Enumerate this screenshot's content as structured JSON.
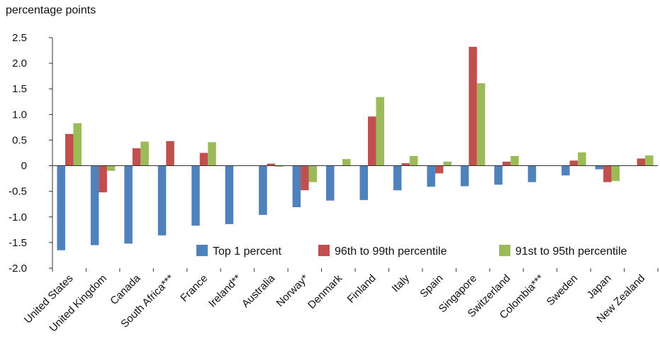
{
  "chart_data": {
    "type": "bar",
    "ylabel": "percentage points",
    "ylim": [
      -2.0,
      2.5
    ],
    "yticks": [
      "2.5",
      "2.0",
      "1.5",
      "1.0",
      "0.5",
      "0",
      "-0.5",
      "-1.0",
      "-1.5",
      "-2.0"
    ],
    "ytick_values": [
      2.5,
      2.0,
      1.5,
      1.0,
      0.5,
      0,
      -0.5,
      -1.0,
      -1.5,
      -2.0
    ],
    "grid": false,
    "legend_position": "bottom-right",
    "categories": [
      "United States",
      "United Kingdom",
      "Canada",
      "South Africa***",
      "France",
      "Ireland**",
      "Australia",
      "Norway*",
      "Denmark",
      "Finland",
      "Italy",
      "Spain",
      "Singapore",
      "Switzerland",
      "Colombia***",
      "Sweden",
      "Japan",
      "New Zealand"
    ],
    "series": [
      {
        "name": "Top 1 percent",
        "color": "#4f81bd",
        "values": [
          -1.65,
          -1.55,
          -1.52,
          -1.36,
          -1.17,
          -1.14,
          -0.96,
          -0.81,
          -0.68,
          -0.67,
          -0.48,
          -0.41,
          -0.4,
          -0.37,
          -0.32,
          -0.19,
          -0.07,
          0.0
        ]
      },
      {
        "name": "96th to 99th percentile",
        "color": "#c0504d",
        "values": [
          0.62,
          -0.52,
          0.34,
          0.48,
          0.25,
          null,
          0.04,
          -0.48,
          0.01,
          0.96,
          0.05,
          -0.15,
          2.32,
          0.08,
          null,
          0.1,
          -0.32,
          0.14
        ]
      },
      {
        "name": "91st to 95th percentile",
        "color": "#9bbb59",
        "values": [
          0.83,
          -0.1,
          0.47,
          null,
          0.46,
          null,
          -0.02,
          -0.32,
          0.13,
          1.34,
          0.19,
          0.08,
          1.61,
          0.19,
          null,
          0.26,
          -0.3,
          0.2
        ]
      }
    ]
  }
}
